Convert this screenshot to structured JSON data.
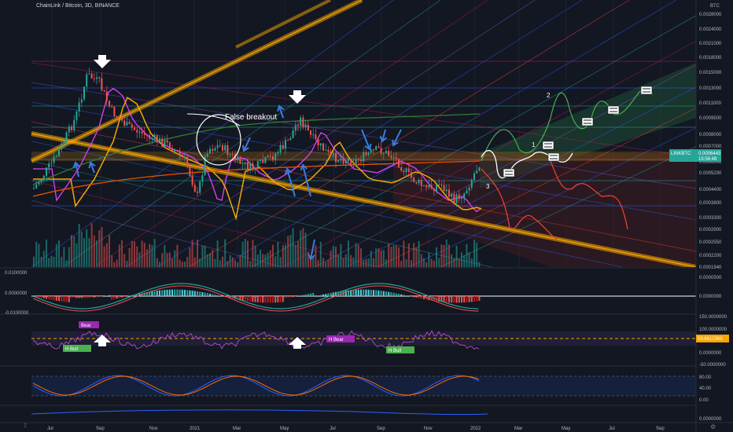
{
  "header": {
    "symbol_title": "ChainLink / Bitcoin, 3D, BINANCE"
  },
  "price_axis": {
    "currency": "BTC",
    "labels": [
      "0.0028000",
      "0.0024000",
      "0.0021000",
      "0.0018000",
      "0.0015000",
      "0.0013000",
      "0.0011000",
      "0.0009500",
      "0.0008000",
      "0.0007000",
      "0.0006000",
      "0.0005200",
      "0.0004400",
      "0.0003800",
      "0.0003300",
      "0.0002900",
      "0.0002550",
      "0.0002200",
      "0.0001940"
    ],
    "current_symbol": "LINKBTC",
    "current_price": "0.0006443",
    "countdown": "15:56:48"
  },
  "time_axis": {
    "labels": [
      "Jul",
      "Sep",
      "Nov",
      "2021",
      "Mar",
      "May",
      "Jul",
      "Sep",
      "Nov",
      "2022",
      "Mar",
      "May",
      "Jul",
      "Sep"
    ]
  },
  "macd_axis": {
    "left_labels": [
      "0.0100000",
      "0.0000000",
      "-0.0100000"
    ],
    "right_labels": [
      "0.0000500",
      "0.0000000"
    ]
  },
  "rsi_axis": {
    "right_labels": [
      "150.0000000",
      "100.0000000",
      "59.6612366",
      "0.0000000",
      "-50.0000000"
    ],
    "current_value": "59.6612366"
  },
  "stoch_axis": {
    "right_labels": [
      "80.00",
      "40.00",
      "0.00"
    ]
  },
  "extra_axis": {
    "right_labels": [
      "0.0000000"
    ]
  },
  "annotations": {
    "false_breakout": "False breakout",
    "wave_1": "1",
    "wave_2": "2",
    "wave_3": "3",
    "wave_1b": "1"
  },
  "divergence_badges": [
    {
      "label": "Bear",
      "color": "#9c27b0"
    },
    {
      "label": "H Bull",
      "color": "#4caf50"
    },
    {
      "label": "H Bear",
      "color": "#9c27b0"
    },
    {
      "label": "H Bull",
      "color": "#4caf50"
    }
  ],
  "colors": {
    "background": "#131722",
    "bull": "#26a69a",
    "bear": "#ef5350",
    "orange": "#f7a600",
    "blue_arrow": "#3d7be0",
    "green_projection": "#4caf50",
    "red_projection": "#f44336",
    "rsi": "#9c27b0"
  },
  "chart_data": {
    "type": "candlestick",
    "title": "ChainLink / Bitcoin, 3D, BINANCE",
    "y_unit": "BTC",
    "y_range": [
      0.000194,
      0.0028
    ],
    "y_scale": "log",
    "x_range": [
      "Jul 2020",
      "Sep 2022"
    ],
    "close_series_approx": [
      {
        "x": "Jul 2020",
        "y": 0.00046
      },
      {
        "x": "Aug 2020",
        "y": 0.0012
      },
      {
        "x": "Sep 2020",
        "y": 0.0009
      },
      {
        "x": "Nov 2020",
        "y": 0.0007
      },
      {
        "x": "Dec 2020",
        "y": 0.00052
      },
      {
        "x": "Jan 2021",
        "y": 0.00062
      },
      {
        "x": "Mar 2021",
        "y": 0.00055
      },
      {
        "x": "May 2021",
        "y": 0.00085
      },
      {
        "x": "Jul 2021",
        "y": 0.00058
      },
      {
        "x": "Sep 2021",
        "y": 0.00062
      },
      {
        "x": "Nov 2021",
        "y": 0.00042
      },
      {
        "x": "Jan 2022",
        "y": 0.0006443
      }
    ],
    "last_price": 0.0006443,
    "grid": true
  }
}
